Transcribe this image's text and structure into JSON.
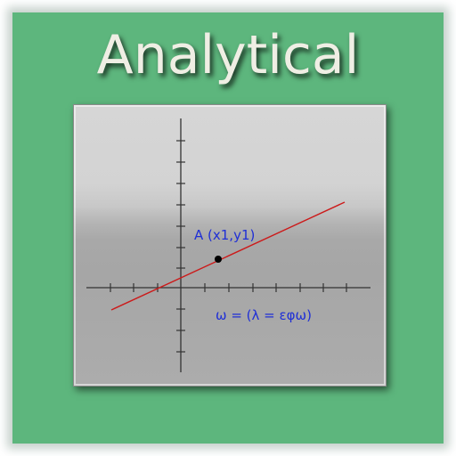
{
  "title": "Analytical",
  "graph": {
    "point_label": "A (x1,y1)",
    "equation": "ω = (λ = εφω)"
  },
  "colors": {
    "background_frame": "#5db67d",
    "title_text": "#efeee4",
    "line": "#cc1a1a",
    "label_text": "#1f2fd6",
    "point": "#000000"
  }
}
